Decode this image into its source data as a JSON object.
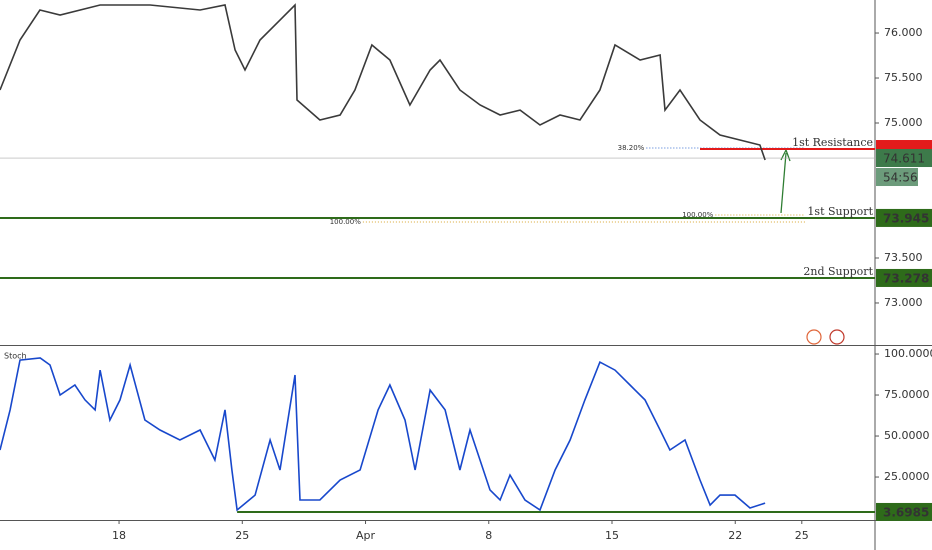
{
  "chart_data": [
    {
      "type": "line",
      "xlim": [
        -4.83,
        30.67
      ],
      "ylim": [
        72.533,
        76.367
      ],
      "yticks": [
        {
          "value": 76,
          "label": "76.000"
        },
        {
          "value": 75.5,
          "label": "75.500"
        },
        {
          "value": 75,
          "label": "75.000"
        },
        {
          "value": 73.5,
          "label": "73.500"
        },
        {
          "value": 73,
          "label": "73.000"
        }
      ],
      "series": [
        {
          "color": "#3a3a3a",
          "x": [
            -4.83,
            -4.02,
            -3.21,
            -2.39,
            -0.77,
            1.26,
            3.29,
            4.3,
            4.71,
            5.11,
            5.72,
            6.53,
            7.14,
            7.22,
            8.15,
            8.97,
            9.57,
            10.26,
            10.99,
            11.8,
            12.62,
            13.02,
            13.83,
            14.65,
            15.46,
            16.27,
            17.08,
            17.89,
            18.7,
            19.51,
            20.12,
            21.14,
            21.95,
            22.15,
            22.76,
            23.57,
            24.38,
            25.19,
            26.0,
            26.21
          ],
          "values": [
            75.367,
            75.922,
            76.256,
            76.2,
            76.311,
            76.311,
            76.256,
            76.311,
            75.811,
            75.589,
            75.922,
            76.144,
            76.311,
            75.256,
            75.033,
            75.089,
            75.367,
            75.867,
            75.7,
            75.2,
            75.589,
            75.7,
            75.367,
            75.2,
            75.089,
            75.144,
            74.978,
            75.089,
            75.033,
            75.367,
            75.867,
            75.7,
            75.756,
            75.144,
            75.367,
            75.033,
            74.867,
            74.811,
            74.756,
            74.589
          ]
        }
      ],
      "levels": [
        {
          "name": "1st Resistance",
          "value": 74.711,
          "color": "#e31b1b",
          "start": 23.57
        },
        {
          "name": "1st Support",
          "value": 73.945,
          "color": "#2e6b1a",
          "start": -4.83
        },
        {
          "name": "2nd Support",
          "value": 73.278,
          "color": "#2e6b1a",
          "start": -4.83
        }
      ],
      "fib_levels": [
        {
          "value": 74.722,
          "label": "38.20%",
          "color": "#3b6fd1",
          "at": 20.5
        },
        {
          "value": 73.9,
          "label": "100.00%",
          "color": "#d9a630",
          "at": 9.0
        },
        {
          "value": 73.978,
          "label": "100.00%",
          "color": "#d9a630",
          "at": 23.3
        }
      ],
      "last_price": 74.611,
      "countdown": "54:56"
    },
    {
      "type": "line",
      "title": "Stoch",
      "xlim": [
        -4.83,
        30.67
      ],
      "ylim": [
        -1.2,
        105.5
      ],
      "yticks": [
        {
          "value": 100,
          "label": "100.0000"
        },
        {
          "value": 75,
          "label": "75.0000"
        },
        {
          "value": 50,
          "label": "50.0000"
        },
        {
          "value": 25,
          "label": "25.0000"
        }
      ],
      "xticks": [
        {
          "value": 0,
          "label": "18"
        },
        {
          "value": 5,
          "label": "25"
        },
        {
          "value": 10,
          "label": "Apr"
        },
        {
          "value": 15,
          "label": "8"
        },
        {
          "value": 20,
          "label": "15"
        },
        {
          "value": 25,
          "label": "22"
        },
        {
          "value": 27.7,
          "label": "25"
        }
      ],
      "series": [
        {
          "color": "#1848cc",
          "x": [
            -4.83,
            -4.42,
            -4.02,
            -3.2,
            -2.8,
            -2.39,
            -1.79,
            -1.38,
            -0.97,
            -0.77,
            -0.37,
            0.04,
            0.45,
            1.05,
            1.66,
            2.47,
            3.29,
            3.89,
            4.3,
            4.58,
            4.79,
            5.52,
            6.13,
            6.53,
            7.14,
            7.34,
            8.15,
            8.97,
            9.78,
            10.51,
            10.99,
            11.6,
            12.01,
            12.62,
            13.23,
            13.83,
            14.24,
            15.05,
            15.46,
            15.86,
            16.47,
            17.08,
            17.69,
            18.3,
            18.9,
            19.51,
            20.12,
            20.73,
            21.34,
            21.95,
            22.35,
            22.96,
            23.57,
            23.98,
            24.38,
            24.99,
            25.6,
            26.21
          ],
          "values": [
            41.5,
            65.9,
            96.3,
            97.6,
            93.3,
            75.0,
            81.1,
            72.0,
            65.9,
            90.2,
            59.8,
            72.0,
            93.3,
            59.8,
            53.7,
            47.6,
            53.7,
            35.4,
            65.9,
            29.3,
            4.9,
            14.0,
            47.6,
            29.3,
            87.2,
            11.0,
            11.0,
            23.2,
            29.3,
            65.9,
            81.1,
            59.8,
            29.3,
            78.0,
            65.9,
            29.3,
            53.7,
            17.1,
            11.0,
            26.2,
            11.0,
            4.9,
            29.3,
            47.6,
            72.0,
            95.1,
            90.2,
            81.1,
            72.0,
            53.7,
            41.5,
            47.6,
            23.2,
            7.9,
            14.0,
            14.0,
            6.1,
            9.1
          ]
        }
      ],
      "levels": [
        {
          "value": 3.6985,
          "color": "#2e6b1a",
          "start": 4.79
        }
      ]
    }
  ]
}
